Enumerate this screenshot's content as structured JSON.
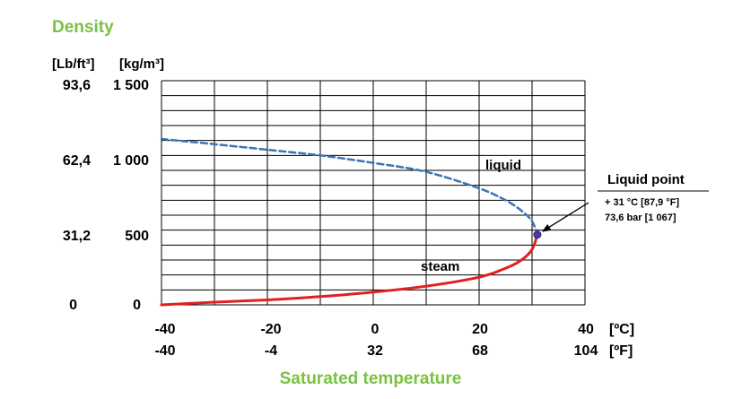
{
  "chart_data": {
    "type": "line",
    "title": "Density",
    "xlabel": "Saturated temperature",
    "y_units": {
      "left": "[Lb/ft³]",
      "right": "[kg/m³]"
    },
    "x_units": {
      "top": "[ºC]",
      "bottom": "[ºF]"
    },
    "y_ticks_lbft3": [
      "93,6",
      "62,4",
      "31,2",
      "0"
    ],
    "y_ticks_kgm3": [
      "1 500",
      "1 000",
      "500",
      "0"
    ],
    "x_ticks_c": [
      "-40",
      "-20",
      "0",
      "20",
      "40"
    ],
    "x_ticks_f": [
      "-40",
      "-4",
      "32",
      "68",
      "104"
    ],
    "xlim": [
      -40,
      40
    ],
    "ylim": [
      0,
      1500
    ],
    "grid": true,
    "series": [
      {
        "name": "liquid",
        "color": "#3d73b5",
        "style": "dashed",
        "x": [
          -40,
          -30,
          -20,
          -10,
          0,
          10,
          20,
          25,
          28,
          30,
          31
        ],
        "y": [
          1110,
          1075,
          1038,
          1000,
          950,
          890,
          780,
          700,
          630,
          560,
          470
        ]
      },
      {
        "name": "steam",
        "color": "#e02020",
        "style": "solid",
        "x": [
          -40,
          -30,
          -20,
          -10,
          0,
          10,
          20,
          25,
          28,
          30,
          31
        ],
        "y": [
          0,
          18,
          33,
          55,
          85,
          125,
          185,
          245,
          300,
          370,
          470
        ]
      }
    ],
    "annotation": {
      "title": "Liquid point",
      "line1": "+ 31 °C [87,9 °F]",
      "line2": "73,6 bar [1 067]",
      "x": 31,
      "y": 470
    }
  }
}
